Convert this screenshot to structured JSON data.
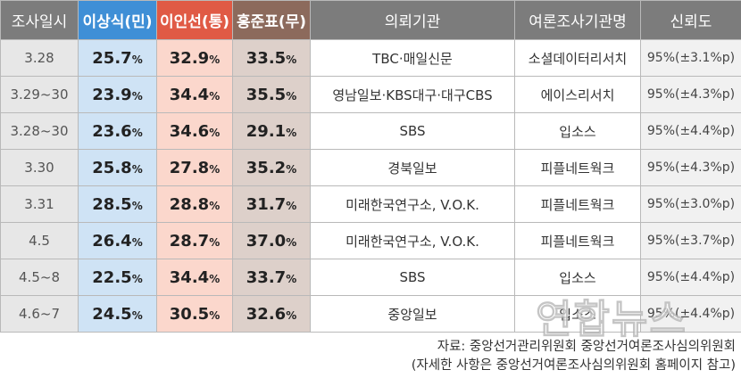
{
  "table": {
    "headers": {
      "date": "조사일시",
      "candidate_a": "이상식(민)",
      "candidate_b": "이인선(통)",
      "candidate_c": "홍준표(무)",
      "client": "의뢰기관",
      "pollster": "여론조사기관명",
      "confidence": "신뢰도"
    },
    "rows": [
      {
        "date": "3.28",
        "a": "25.7",
        "b": "32.9",
        "c": "33.5",
        "client": "TBC·매일신문",
        "pollster": "소셜데이터리서치",
        "confidence": "95%(±3.1%p)"
      },
      {
        "date": "3.29~30",
        "a": "23.9",
        "b": "34.4",
        "c": "35.5",
        "client": "영남일보·KBS대구·대구CBS",
        "pollster": "에이스리서치",
        "confidence": "95%(±4.3%p)"
      },
      {
        "date": "3.28~30",
        "a": "23.6",
        "b": "34.6",
        "c": "29.1",
        "client": "SBS",
        "pollster": "입소스",
        "confidence": "95%(±4.4%p)"
      },
      {
        "date": "3.30",
        "a": "25.8",
        "b": "27.8",
        "c": "35.2",
        "client": "경북일보",
        "pollster": "피플네트웍크",
        "confidence": "95%(±4.3%p)"
      },
      {
        "date": "3.31",
        "a": "28.5",
        "b": "28.8",
        "c": "31.7",
        "client": "미래한국연구소, V.O.K.",
        "pollster": "피플네트웍크",
        "confidence": "95%(±3.0%p)"
      },
      {
        "date": "4.5",
        "a": "26.4",
        "b": "28.7",
        "c": "37.0",
        "client": "미래한국연구소, V.O.K.",
        "pollster": "피플네트웍크",
        "confidence": "95%(±3.7%p)"
      },
      {
        "date": "4.5~8",
        "a": "22.5",
        "b": "34.4",
        "c": "33.7",
        "client": "SBS",
        "pollster": "입소스",
        "confidence": "95%(±4.4%p)"
      },
      {
        "date": "4.6~7",
        "a": "24.5",
        "b": "30.5",
        "c": "32.6",
        "client": "중앙일보",
        "pollster": "입소스",
        "confidence": "95%(±4.4%p)"
      }
    ],
    "percent_symbol": "%"
  },
  "footer": {
    "source": "자료:  중앙선거관리위원회 중앙선거여론조사심의위원회",
    "note": "(자세한 사항은 중앙선거여론조사심의위원회 홈페이지 참고)"
  },
  "watermark": "연합뉴스",
  "colors": {
    "header_gray": "#7c7c7c",
    "candidate_a": "#3f8fd6",
    "candidate_b": "#e05a45",
    "candidate_c": "#8c6a5c"
  }
}
